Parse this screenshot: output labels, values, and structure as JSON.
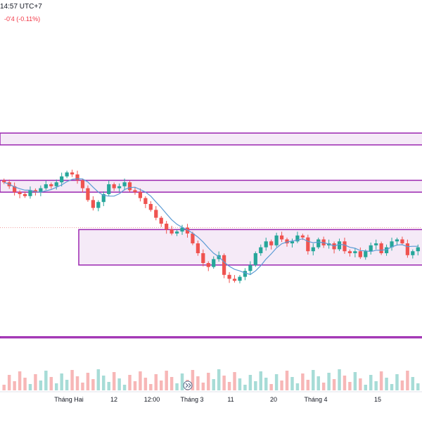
{
  "header": {
    "time_text": "14:57 UTC+7",
    "change_text": "-0'4 (-0.11%)"
  },
  "colors": {
    "up": "#26a69a",
    "down": "#ef5350",
    "ma": "#5b9bd5",
    "zone_border": "#9c27b0",
    "zone_fill": "#f3e5f5",
    "vol_up": "#a7dcd7",
    "vol_down": "#f7b7b7",
    "ref_line": "#ef9a9a"
  },
  "icons": {
    "scroll_marker": "double-chevron-right-icon"
  },
  "chart_data": {
    "type": "candlestick",
    "title": "",
    "x_ticks": [
      "Tháng Hai",
      "12",
      "12:00",
      "Tháng 3",
      "11",
      "20",
      "Tháng 4",
      "15"
    ],
    "price_range": [
      475,
      610
    ],
    "grid": false,
    "zones": [
      {
        "low": 590,
        "high": 596
      },
      {
        "low": 566,
        "high": 572
      },
      {
        "low": 529,
        "high": 547
      },
      {
        "low": 492,
        "high": 492.6
      }
    ],
    "reference_price": 548,
    "closes": [
      571,
      569,
      566,
      565,
      564,
      567,
      566,
      568,
      570,
      569,
      571,
      574,
      576,
      575,
      572,
      568,
      562,
      558,
      561,
      565,
      570,
      568,
      569,
      571,
      567,
      566,
      563,
      560,
      557,
      553,
      550,
      547,
      545,
      546,
      548,
      545,
      540,
      535,
      530,
      528,
      532,
      534,
      524,
      522,
      521,
      523,
      526,
      529,
      535,
      538,
      541,
      539,
      544,
      542,
      540,
      541,
      544,
      543,
      536,
      538,
      542,
      539,
      540,
      537,
      541,
      536,
      535,
      536,
      533,
      536,
      539,
      540,
      535,
      538,
      541,
      542,
      540,
      534,
      536,
      538
    ]
  }
}
